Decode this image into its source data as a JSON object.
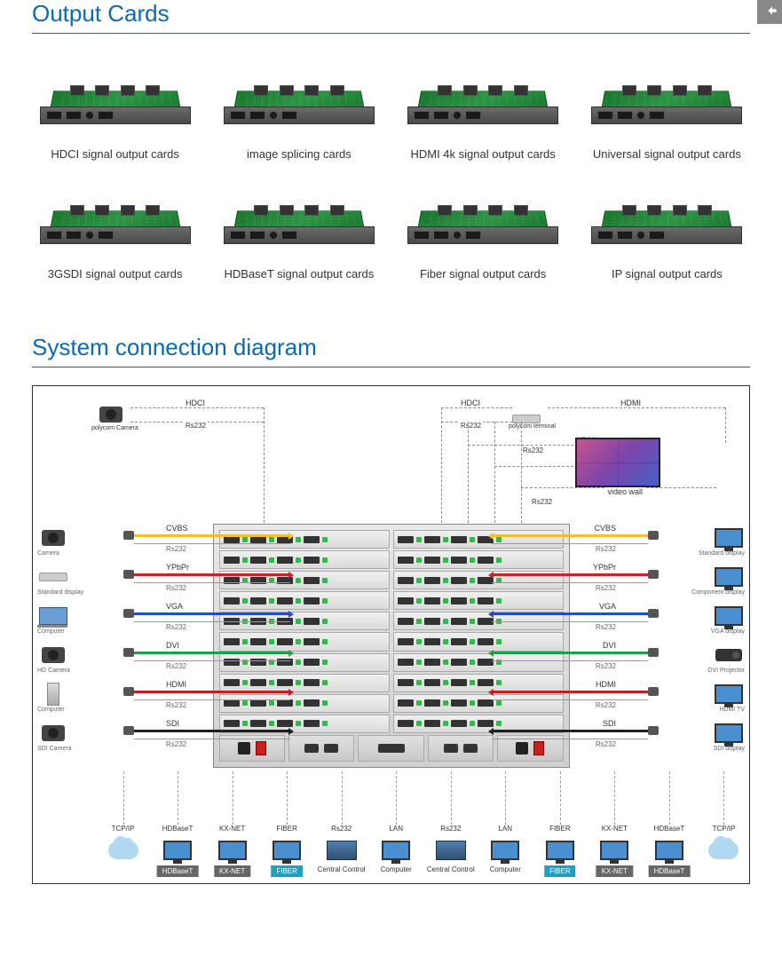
{
  "back_button": "退出",
  "sections": {
    "output_cards_title": "Output Cards",
    "diagram_title": "System connection diagram"
  },
  "title_color": "#0a6ab3",
  "cards": [
    {
      "label": "HDCI signal output cards"
    },
    {
      "label": "image splicing cards"
    },
    {
      "label": "HDMI 4k signal output  cards"
    },
    {
      "label": "Universal signal output cards"
    },
    {
      "label": "3GSDI signal output cards"
    },
    {
      "label": "HDBaseT signal output cards"
    },
    {
      "label": "Fiber signal output cards"
    },
    {
      "label": "IP signal output cards"
    }
  ],
  "signal_colors": {
    "CVBS": "#f0c030",
    "YPbPr": "#d02020",
    "VGA": "#2050c0",
    "DVI": "#20a040",
    "HDMI": "#c02020",
    "SDI": "#202020"
  },
  "rs232_label": "Rs232",
  "left_inputs": [
    {
      "signal": "CVBS",
      "device": "Camera",
      "icon": "camera"
    },
    {
      "signal": "YPbPr",
      "device": "Standard display",
      "icon": "stb"
    },
    {
      "signal": "VGA",
      "device": "Computer",
      "icon": "laptop"
    },
    {
      "signal": "DVI",
      "device": "HD Camera",
      "icon": "camera"
    },
    {
      "signal": "HDMI",
      "device": "Computer",
      "icon": "tower"
    },
    {
      "signal": "SDI",
      "device": "SDI Camera",
      "icon": "camera"
    }
  ],
  "right_outputs": [
    {
      "signal": "CVBS",
      "device": "Standard display",
      "icon": "monitor"
    },
    {
      "signal": "YPbPr",
      "device": "Component display",
      "icon": "monitor"
    },
    {
      "signal": "VGA",
      "device": "VGA display",
      "icon": "monitor"
    },
    {
      "signal": "DVI",
      "device": "DVI Projector",
      "icon": "projector"
    },
    {
      "signal": "HDMI",
      "device": "HDMI TV",
      "icon": "monitor"
    },
    {
      "signal": "SDI",
      "device": "SDI display",
      "icon": "monitor"
    }
  ],
  "top": {
    "left_device": "polycom Camera",
    "right_device": "polycom terminal",
    "video_wall": "video wall",
    "hdci": "HDCI",
    "hdmi": "HDMI",
    "rs232": "Rs232"
  },
  "bottom": {
    "items_left": [
      {
        "label": "TCP/IP",
        "tag": null,
        "tag_color": null,
        "icon": "cloud"
      },
      {
        "label": "HDBaseT",
        "tag": "HDBaseT",
        "tag_color": "#666666",
        "icon": "monitor"
      },
      {
        "label": "KX-NET",
        "tag": "KX-NET",
        "tag_color": "#666666",
        "icon": "monitor"
      },
      {
        "label": "FIBER",
        "tag": "FIBER",
        "tag_color": "#20a0c0",
        "icon": "monitor"
      }
    ],
    "items_center": [
      {
        "label": "Rs232",
        "sublabel": "Central Control",
        "icon": "rack"
      },
      {
        "label": "LAN",
        "sublabel": "Computer",
        "icon": "monitor"
      },
      {
        "label": "Rs232",
        "sublabel": "Central Control",
        "icon": "rack"
      },
      {
        "label": "LAN",
        "sublabel": "Computer",
        "icon": "monitor"
      }
    ],
    "items_right": [
      {
        "label": "FIBER",
        "tag": "FIBER",
        "tag_color": "#20a0c0",
        "icon": "monitor"
      },
      {
        "label": "KX-NET",
        "tag": "KX-NET",
        "tag_color": "#666666",
        "icon": "monitor"
      },
      {
        "label": "HDBaseT",
        "tag": "HDBaseT",
        "tag_color": "#666666",
        "icon": "monitor"
      },
      {
        "label": "TCP/IP",
        "tag": null,
        "tag_color": null,
        "icon": "cloud"
      }
    ]
  },
  "matrix": {
    "card_rows": 10,
    "ports_per_half": 4
  }
}
